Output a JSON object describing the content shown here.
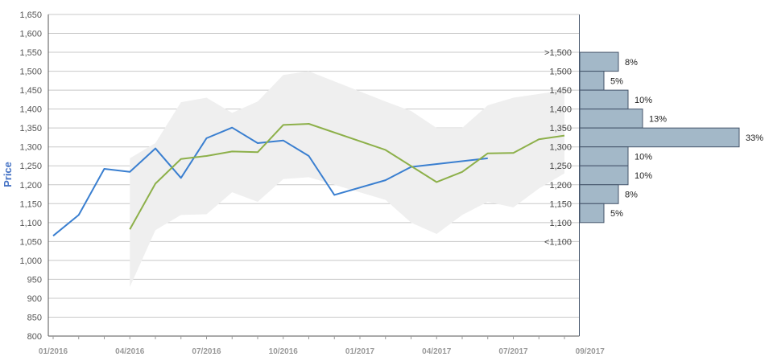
{
  "chart_data": {
    "type": "line",
    "ylabel": "Price",
    "ylim": [
      800,
      1650
    ],
    "y_ticks": [
      "800",
      "850",
      "900",
      "950",
      "1,000",
      "1,050",
      "1,100",
      "1,150",
      "1,200",
      "1,250",
      "1,300",
      "1,350",
      "1,400",
      "1,450",
      "1,500",
      "1,550",
      "1,600",
      "1,650"
    ],
    "x_tick_labels": [
      "01/2016",
      "04/2016",
      "07/2016",
      "10/2016",
      "01/2017",
      "04/2017",
      "07/2017",
      "09/2017"
    ],
    "grid": true,
    "colors": {
      "series_blue": "#3A7FD0",
      "series_green": "#8DB04A",
      "band": "#EFEFEF",
      "histogram_bar": "#A3B8C8",
      "histogram_border": "#44546A",
      "axis_label": "#4472C4"
    },
    "series": [
      {
        "values": [
          {
            "x": "2016-01",
            "y": 1065
          },
          {
            "x": "2016-02",
            "y": 1120
          },
          {
            "x": "2016-03",
            "y": 1242
          },
          {
            "x": "2016-04",
            "y": 1234
          },
          {
            "x": "2016-05",
            "y": 1296
          },
          {
            "x": "2016-06",
            "y": 1218
          },
          {
            "x": "2016-07",
            "y": 1323
          },
          {
            "x": "2016-08",
            "y": 1351
          },
          {
            "x": "2016-09",
            "y": 1310
          },
          {
            "x": "2016-10",
            "y": 1317
          },
          {
            "x": "2016-11",
            "y": 1276
          },
          {
            "x": "2016-12",
            "y": 1173
          },
          {
            "x": "2017-02",
            "y": 1212
          },
          {
            "x": "2017-03",
            "y": 1247
          },
          {
            "x": "2017-06",
            "y": 1270
          }
        ]
      },
      {
        "values": [
          {
            "x": "2016-04",
            "y": 1082
          },
          {
            "x": "2016-05",
            "y": 1203
          },
          {
            "x": "2016-06",
            "y": 1268
          },
          {
            "x": "2016-07",
            "y": 1276
          },
          {
            "x": "2016-08",
            "y": 1288
          },
          {
            "x": "2016-09",
            "y": 1286
          },
          {
            "x": "2016-10",
            "y": 1358
          },
          {
            "x": "2016-11",
            "y": 1361
          },
          {
            "x": "2017-02",
            "y": 1292
          },
          {
            "x": "2017-04",
            "y": 1207
          },
          {
            "x": "2017-05",
            "y": 1234
          },
          {
            "x": "2017-06",
            "y": 1283
          },
          {
            "x": "2017-07",
            "y": 1284
          },
          {
            "x": "2017-08",
            "y": 1320
          },
          {
            "x": "2017-09",
            "y": 1330
          }
        ]
      }
    ],
    "band": [
      {
        "x": "2016-04",
        "low": 930,
        "high": 1270
      },
      {
        "x": "2016-05",
        "low": 1080,
        "high": 1310
      },
      {
        "x": "2016-06",
        "low": 1120,
        "high": 1418
      },
      {
        "x": "2016-07",
        "low": 1122,
        "high": 1430
      },
      {
        "x": "2016-08",
        "low": 1180,
        "high": 1390
      },
      {
        "x": "2016-09",
        "low": 1155,
        "high": 1420
      },
      {
        "x": "2016-10",
        "low": 1215,
        "high": 1490
      },
      {
        "x": "2016-11",
        "low": 1220,
        "high": 1500
      },
      {
        "x": "2017-02",
        "low": 1160,
        "high": 1420
      },
      {
        "x": "2017-03",
        "low": 1100,
        "high": 1395
      },
      {
        "x": "2017-04",
        "low": 1070,
        "high": 1350
      },
      {
        "x": "2017-05",
        "low": 1120,
        "high": 1350
      },
      {
        "x": "2017-06",
        "low": 1155,
        "high": 1410
      },
      {
        "x": "2017-07",
        "low": 1140,
        "high": 1430
      },
      {
        "x": "2017-08",
        "low": 1190,
        "high": 1440
      },
      {
        "x": "2017-09",
        "low": 1230,
        "high": 1450
      }
    ],
    "histogram": [
      {
        "label": ">1,500",
        "low": 1500,
        "high": 1550,
        "pct": 8,
        "pct_label": "8%"
      },
      {
        "label": "1,500",
        "low": 1450,
        "high": 1500,
        "pct": 5,
        "pct_label": "5%"
      },
      {
        "label": "1,450",
        "low": 1400,
        "high": 1450,
        "pct": 10,
        "pct_label": "10%"
      },
      {
        "label": "1,400",
        "low": 1350,
        "high": 1400,
        "pct": 13,
        "pct_label": "13%"
      },
      {
        "label": "1,350",
        "low": 1300,
        "high": 1350,
        "pct": 33,
        "pct_label": "33%"
      },
      {
        "label": "1,300",
        "low": 1250,
        "high": 1300,
        "pct": 10,
        "pct_label": "10%"
      },
      {
        "label": "1,250",
        "low": 1200,
        "high": 1250,
        "pct": 10,
        "pct_label": "10%"
      },
      {
        "label": "1,200",
        "low": 1150,
        "high": 1200,
        "pct": 8,
        "pct_label": "8%"
      },
      {
        "label": "1,150",
        "low": 1100,
        "high": 1150,
        "pct": 5,
        "pct_label": "5%"
      },
      {
        "label": "1,100",
        "low": 1050,
        "high": 1100,
        "pct": 0,
        "pct_label": ""
      },
      {
        "label": "<1,100",
        "low": 1000,
        "high": 1050,
        "pct": 0,
        "pct_label": ""
      }
    ]
  }
}
